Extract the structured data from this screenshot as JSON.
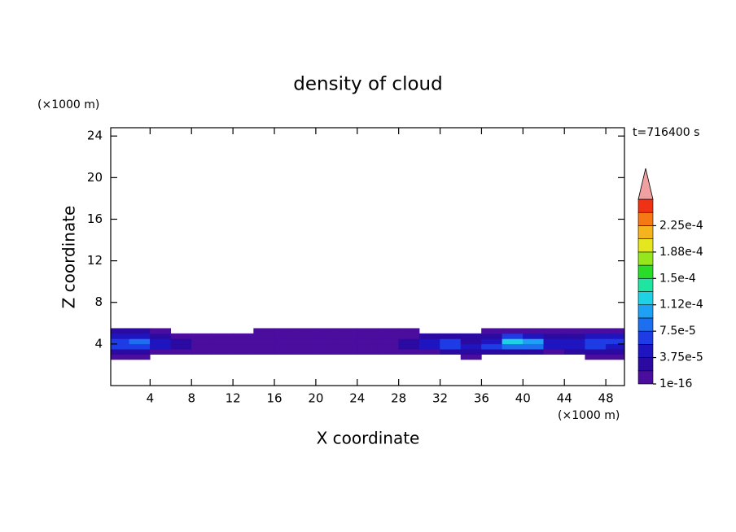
{
  "chart_data": {
    "type": "contour",
    "title": "density of cloud",
    "xlabel": "X coordinate",
    "ylabel": "Z coordinate",
    "xunit": "(×1000 m)",
    "yunit": "(×1000 m)",
    "time_label": "t=716400 s",
    "xlim": [
      0.2,
      49.8
    ],
    "ylim": [
      0,
      24.8
    ],
    "xticks": [
      4,
      8,
      12,
      16,
      20,
      24,
      28,
      32,
      36,
      40,
      44,
      48
    ],
    "yticks": [
      4,
      8,
      12,
      16,
      20,
      24
    ],
    "x": [
      1,
      3,
      5,
      7,
      9,
      11,
      13,
      15,
      17,
      19,
      21,
      23,
      25,
      27,
      29,
      31,
      33,
      35,
      37,
      39,
      41,
      43,
      45,
      47,
      49
    ],
    "y": [
      2.75,
      3.25,
      3.75,
      4.25,
      4.75,
      5.25
    ],
    "z": [
      [
        5e-06,
        5e-06,
        null,
        null,
        null,
        null,
        null,
        null,
        null,
        null,
        null,
        null,
        null,
        null,
        null,
        null,
        null,
        5e-06,
        null,
        null,
        null,
        null,
        null,
        5e-06,
        5e-06
      ],
      [
        3e-05,
        3e-05,
        5e-06,
        5e-06,
        5e-06,
        5e-06,
        5e-06,
        5e-06,
        5e-06,
        5e-06,
        5e-06,
        5e-06,
        5e-06,
        5e-06,
        5e-06,
        5e-06,
        3e-05,
        3e-05,
        3e-05,
        3e-05,
        3e-05,
        5e-06,
        3e-05,
        3e-05,
        3e-05
      ],
      [
        6e-05,
        7e-05,
        4e-05,
        2e-05,
        5e-06,
        5e-06,
        5e-06,
        5e-06,
        5e-06,
        5e-06,
        5e-06,
        5e-06,
        5e-06,
        5e-06,
        2e-05,
        4e-05,
        6e-05,
        4e-05,
        6e-05,
        9e-05,
        8e-05,
        5e-05,
        4e-05,
        6e-05,
        5e-05
      ],
      [
        7e-05,
        8e-05,
        5e-05,
        2e-05,
        5e-06,
        5e-06,
        5e-06,
        5e-06,
        5e-06,
        5e-06,
        5e-06,
        5e-06,
        5e-06,
        5e-06,
        2e-05,
        4e-05,
        6e-05,
        3e-05,
        5e-05,
        0.00012,
        0.0001,
        5e-05,
        5e-05,
        7e-05,
        6e-05
      ],
      [
        4e-05,
        4e-05,
        3e-05,
        5e-06,
        5e-06,
        5e-06,
        5e-06,
        5e-06,
        5e-06,
        5e-06,
        5e-06,
        5e-06,
        5e-06,
        5e-06,
        1e-05,
        2e-05,
        3e-05,
        2e-05,
        3e-05,
        6e-05,
        4e-05,
        3e-05,
        3e-05,
        4e-05,
        4e-05
      ],
      [
        2e-05,
        2e-05,
        1e-05,
        null,
        null,
        null,
        null,
        5e-06,
        5e-06,
        5e-06,
        5e-06,
        5e-06,
        5e-06,
        5e-06,
        5e-06,
        null,
        null,
        null,
        5e-06,
        5e-06,
        5e-06,
        5e-06,
        5e-06,
        5e-06,
        5e-06
      ]
    ],
    "levels": [
      1e-16,
      1.875e-05,
      3.75e-05,
      5.625e-05,
      7.5e-05,
      9.375e-05,
      0.0001125,
      0.00013125,
      0.00015,
      0.00016875,
      0.0001875,
      0.00020625,
      0.000225,
      0.00024375,
      0.0002625
    ],
    "colors": [
      "#4a0d9e",
      "#2a0aa0",
      "#1e14c0",
      "#1e3ce6",
      "#1e6ef0",
      "#1ea0f5",
      "#1ed2e6",
      "#1ee6a0",
      "#28dc28",
      "#96e61e",
      "#e6e61e",
      "#f5b41e",
      "#f57814",
      "#f03214"
    ],
    "overflow_color": "#f0a0a0",
    "colorbar_lim": [
      1e-16,
      0.0002625
    ],
    "colorbar_ticks": [
      {
        "value": 1e-16,
        "label": "1e-16"
      },
      {
        "value": 3.75e-05,
        "label": "3.75e-5"
      },
      {
        "value": 7.5e-05,
        "label": "7.5e-5"
      },
      {
        "value": 0.0001125,
        "label": "1.12e-4"
      },
      {
        "value": 0.00015,
        "label": "1.5e-4"
      },
      {
        "value": 0.0001875,
        "label": "1.88e-4"
      },
      {
        "value": 0.000225,
        "label": "2.25e-4"
      }
    ]
  }
}
